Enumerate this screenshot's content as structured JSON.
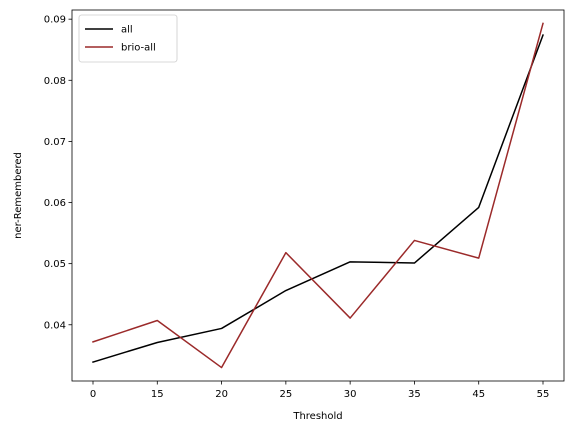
{
  "chart_data": {
    "type": "line",
    "x": [
      "0",
      "15",
      "20",
      "25",
      "30",
      "35",
      "45",
      "55"
    ],
    "series": [
      {
        "name": "all",
        "color": "#000000",
        "values": [
          0.0339,
          0.0371,
          0.0394,
          0.0456,
          0.0503,
          0.0501,
          0.0592,
          0.0874
        ]
      },
      {
        "name": "brio-all",
        "color": "#9b2a2a",
        "values": [
          0.0372,
          0.0407,
          0.033,
          0.0518,
          0.0411,
          0.0538,
          0.0509,
          0.0893
        ]
      }
    ],
    "xlabel": "Threshold",
    "ylabel": "ner-Remembered",
    "ylim": [
      0.0308,
      0.0915
    ],
    "yticks": [
      "0.04",
      "0.05",
      "0.06",
      "0.07",
      "0.08",
      "0.09"
    ],
    "ytick_values": [
      0.04,
      0.05,
      0.06,
      0.07,
      0.08,
      0.09
    ],
    "grid": false,
    "legend_position": "top-left"
  }
}
